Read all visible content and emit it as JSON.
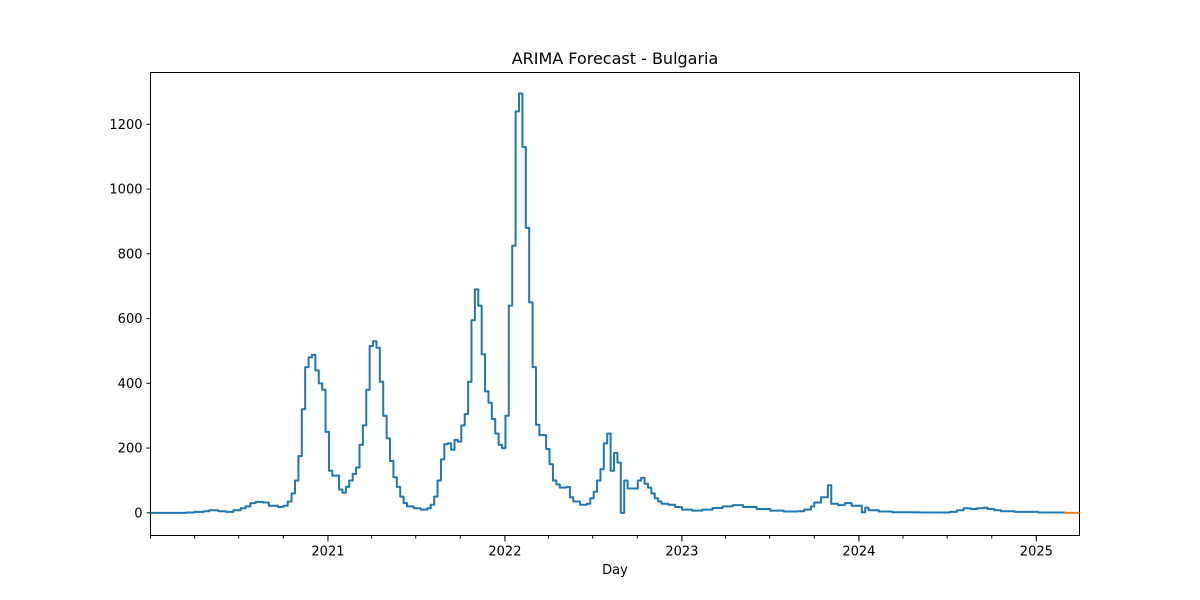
{
  "chart_data": {
    "type": "line",
    "title": "ARIMA Forecast - Bulgaria",
    "xlabel": "Day",
    "ylabel": "",
    "x_range": [
      "2020-01-01",
      "2025-03-31"
    ],
    "ylim": [
      -70,
      1360
    ],
    "y_ticks": [
      0,
      200,
      400,
      600,
      800,
      1000,
      1200
    ],
    "x_ticks": [
      {
        "date": "2021-01-01",
        "label": "2021"
      },
      {
        "date": "2022-01-01",
        "label": "2022"
      },
      {
        "date": "2023-01-01",
        "label": "2023"
      },
      {
        "date": "2024-01-01",
        "label": "2024"
      },
      {
        "date": "2025-01-01",
        "label": "2025"
      }
    ],
    "grid": false,
    "legend": "none",
    "series": [
      {
        "color": "#1f77b4",
        "step": true,
        "points": [
          [
            "2020-01-01",
            0
          ],
          [
            "2020-03-15",
            1
          ],
          [
            "2020-04-01",
            3
          ],
          [
            "2020-04-20",
            5
          ],
          [
            "2020-05-01",
            8
          ],
          [
            "2020-05-20",
            5
          ],
          [
            "2020-06-05",
            3
          ],
          [
            "2020-06-20",
            8
          ],
          [
            "2020-07-05",
            14
          ],
          [
            "2020-07-15",
            20
          ],
          [
            "2020-07-25",
            30
          ],
          [
            "2020-08-05",
            34
          ],
          [
            "2020-08-20",
            32
          ],
          [
            "2020-09-01",
            22
          ],
          [
            "2020-09-20",
            18
          ],
          [
            "2020-10-01",
            22
          ],
          [
            "2020-10-10",
            35
          ],
          [
            "2020-10-18",
            60
          ],
          [
            "2020-10-25",
            100
          ],
          [
            "2020-11-01",
            175
          ],
          [
            "2020-11-08",
            320
          ],
          [
            "2020-11-15",
            450
          ],
          [
            "2020-11-22",
            480
          ],
          [
            "2020-11-29",
            488
          ],
          [
            "2020-12-06",
            440
          ],
          [
            "2020-12-13",
            400
          ],
          [
            "2020-12-20",
            380
          ],
          [
            "2020-12-27",
            250
          ],
          [
            "2021-01-03",
            130
          ],
          [
            "2021-01-10",
            115
          ],
          [
            "2021-01-24",
            72
          ],
          [
            "2021-01-31",
            62
          ],
          [
            "2021-02-07",
            80
          ],
          [
            "2021-02-14",
            100
          ],
          [
            "2021-02-21",
            120
          ],
          [
            "2021-02-28",
            140
          ],
          [
            "2021-03-07",
            210
          ],
          [
            "2021-03-14",
            270
          ],
          [
            "2021-03-21",
            380
          ],
          [
            "2021-03-28",
            515
          ],
          [
            "2021-04-04",
            530
          ],
          [
            "2021-04-11",
            510
          ],
          [
            "2021-04-18",
            405
          ],
          [
            "2021-04-25",
            300
          ],
          [
            "2021-05-02",
            230
          ],
          [
            "2021-05-09",
            160
          ],
          [
            "2021-05-16",
            110
          ],
          [
            "2021-05-23",
            80
          ],
          [
            "2021-05-30",
            50
          ],
          [
            "2021-06-06",
            30
          ],
          [
            "2021-06-13",
            20
          ],
          [
            "2021-06-27",
            14
          ],
          [
            "2021-07-11",
            10
          ],
          [
            "2021-07-25",
            14
          ],
          [
            "2021-08-01",
            25
          ],
          [
            "2021-08-08",
            50
          ],
          [
            "2021-08-15",
            100
          ],
          [
            "2021-08-22",
            165
          ],
          [
            "2021-08-29",
            212
          ],
          [
            "2021-09-05",
            215
          ],
          [
            "2021-09-12",
            195
          ],
          [
            "2021-09-19",
            225
          ],
          [
            "2021-09-26",
            220
          ],
          [
            "2021-10-03",
            270
          ],
          [
            "2021-10-10",
            305
          ],
          [
            "2021-10-17",
            405
          ],
          [
            "2021-10-24",
            595
          ],
          [
            "2021-10-31",
            690
          ],
          [
            "2021-11-07",
            640
          ],
          [
            "2021-11-14",
            490
          ],
          [
            "2021-11-21",
            375
          ],
          [
            "2021-11-28",
            340
          ],
          [
            "2021-12-05",
            290
          ],
          [
            "2021-12-12",
            245
          ],
          [
            "2021-12-19",
            210
          ],
          [
            "2021-12-26",
            200
          ],
          [
            "2022-01-02",
            300
          ],
          [
            "2022-01-09",
            640
          ],
          [
            "2022-01-16",
            825
          ],
          [
            "2022-01-23",
            1240
          ],
          [
            "2022-01-30",
            1295
          ],
          [
            "2022-02-06",
            1130
          ],
          [
            "2022-02-13",
            880
          ],
          [
            "2022-02-20",
            650
          ],
          [
            "2022-02-27",
            450
          ],
          [
            "2022-03-06",
            272
          ],
          [
            "2022-03-13",
            240
          ],
          [
            "2022-03-27",
            197
          ],
          [
            "2022-04-03",
            150
          ],
          [
            "2022-04-10",
            100
          ],
          [
            "2022-04-17",
            88
          ],
          [
            "2022-04-24",
            78
          ],
          [
            "2022-05-08",
            80
          ],
          [
            "2022-05-15",
            48
          ],
          [
            "2022-05-22",
            35
          ],
          [
            "2022-06-05",
            25
          ],
          [
            "2022-06-19",
            28
          ],
          [
            "2022-06-26",
            45
          ],
          [
            "2022-07-03",
            65
          ],
          [
            "2022-07-10",
            100
          ],
          [
            "2022-07-17",
            135
          ],
          [
            "2022-07-24",
            215
          ],
          [
            "2022-07-31",
            245
          ],
          [
            "2022-08-07",
            130
          ],
          [
            "2022-08-14",
            185
          ],
          [
            "2022-08-21",
            155
          ],
          [
            "2022-08-28",
            0
          ],
          [
            "2022-09-04",
            100
          ],
          [
            "2022-09-11",
            75
          ],
          [
            "2022-10-02",
            100
          ],
          [
            "2022-10-09",
            108
          ],
          [
            "2022-10-16",
            90
          ],
          [
            "2022-10-23",
            78
          ],
          [
            "2022-10-30",
            60
          ],
          [
            "2022-11-06",
            45
          ],
          [
            "2022-11-13",
            35
          ],
          [
            "2022-11-20",
            28
          ],
          [
            "2022-12-04",
            25
          ],
          [
            "2022-12-18",
            18
          ],
          [
            "2023-01-01",
            10
          ],
          [
            "2023-01-22",
            7
          ],
          [
            "2023-02-12",
            10
          ],
          [
            "2023-03-05",
            15
          ],
          [
            "2023-03-26",
            20
          ],
          [
            "2023-04-16",
            24
          ],
          [
            "2023-05-07",
            18
          ],
          [
            "2023-06-04",
            12
          ],
          [
            "2023-07-02",
            7
          ],
          [
            "2023-07-30",
            4
          ],
          [
            "2023-08-27",
            5
          ],
          [
            "2023-09-10",
            10
          ],
          [
            "2023-09-24",
            20
          ],
          [
            "2023-10-01",
            32
          ],
          [
            "2023-10-15",
            48
          ],
          [
            "2023-10-29",
            85
          ],
          [
            "2023-11-05",
            28
          ],
          [
            "2023-11-19",
            24
          ],
          [
            "2023-12-03",
            30
          ],
          [
            "2023-12-17",
            22
          ],
          [
            "2024-01-07",
            2
          ],
          [
            "2024-01-14",
            16
          ],
          [
            "2024-01-21",
            8
          ],
          [
            "2024-02-11",
            4
          ],
          [
            "2024-03-10",
            2
          ],
          [
            "2024-05-05",
            1
          ],
          [
            "2024-07-07",
            3
          ],
          [
            "2024-07-21",
            8
          ],
          [
            "2024-08-04",
            14
          ],
          [
            "2024-08-18",
            12
          ],
          [
            "2024-09-01",
            14
          ],
          [
            "2024-09-15",
            16
          ],
          [
            "2024-09-22",
            12
          ],
          [
            "2024-10-06",
            8
          ],
          [
            "2024-10-20",
            5
          ],
          [
            "2024-11-17",
            3
          ],
          [
            "2025-01-05",
            1
          ],
          [
            "2025-02-28",
            0
          ]
        ]
      },
      {
        "color": "#ff7f0e",
        "step": false,
        "points": [
          [
            "2025-02-28",
            0
          ],
          [
            "2025-03-31",
            0
          ]
        ]
      }
    ]
  }
}
